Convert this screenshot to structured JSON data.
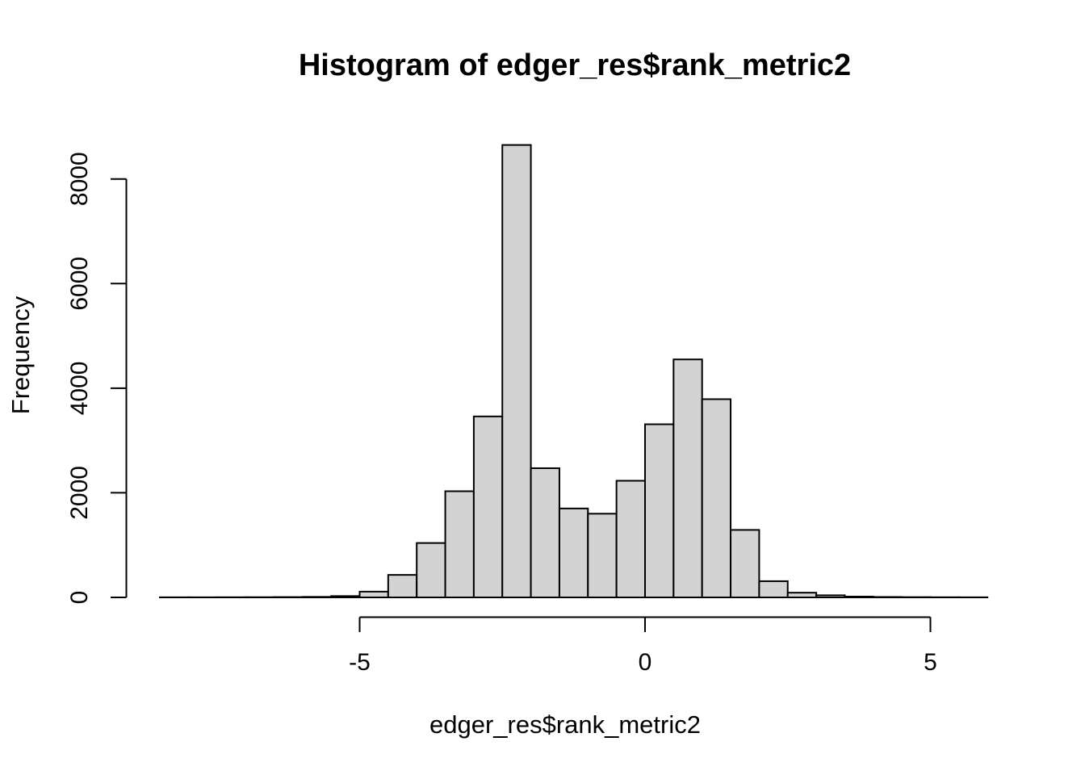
{
  "figure": {
    "background_color": "#ffffff",
    "bar_fill_color": "#d3d3d3",
    "bar_stroke_color": "#000000",
    "axis_color": "#000000",
    "text_color": "#000000"
  },
  "chart_data": {
    "type": "bar",
    "subtype": "histogram",
    "title": "Histogram of edger_res$rank_metric2",
    "xlabel": "edger_res$rank_metric2",
    "ylabel": "Frequency",
    "grid": false,
    "legend": null,
    "bin_width": 0.5,
    "bin_start": -8.5,
    "bin_left_edges": [
      -8.5,
      -8.0,
      -7.5,
      -7.0,
      -6.5,
      -6.0,
      -5.5,
      -5.0,
      -4.5,
      -4.0,
      -3.5,
      -3.0,
      -2.5,
      -2.0,
      -1.5,
      -1.0,
      -0.5,
      0.0,
      0.5,
      1.0,
      1.5,
      2.0,
      2.5,
      3.0,
      3.5,
      4.0,
      4.5,
      5.0,
      5.5
    ],
    "values": [
      2,
      2,
      3,
      4,
      6,
      10,
      25,
      110,
      430,
      1040,
      2030,
      3460,
      8650,
      2470,
      1700,
      1600,
      2230,
      3310,
      4550,
      3790,
      1290,
      310,
      90,
      40,
      15,
      8,
      5,
      3,
      2
    ],
    "x_ticks": [
      -5,
      0,
      5
    ],
    "x_tick_labels": [
      "-5",
      "0",
      "5"
    ],
    "y_ticks": [
      0,
      2000,
      4000,
      6000,
      8000
    ],
    "y_tick_labels": [
      "0",
      "2000",
      "4000",
      "6000",
      "8000"
    ],
    "xlim": [
      -8.5,
      6.0
    ],
    "ylim": [
      0,
      8650
    ]
  }
}
